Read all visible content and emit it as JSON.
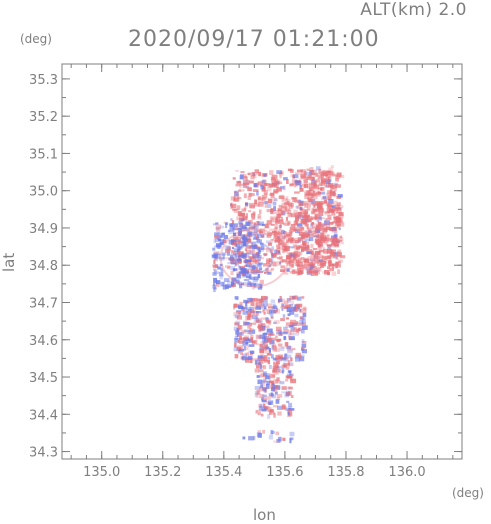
{
  "header": {
    "altitude_label": "ALT(km) 2.0",
    "timestamp": "2020/09/17 01:21:00"
  },
  "axes": {
    "x_label": "lon",
    "y_label": "lat",
    "x_unit": "(deg)",
    "y_unit": "(deg)",
    "x_ticks": [
      "135.0",
      "135.2",
      "135.4",
      "135.6",
      "135.8",
      "136.0"
    ],
    "y_ticks": [
      "35.3",
      "35.2",
      "35.1",
      "35.0",
      "34.9",
      "34.8",
      "34.7",
      "34.6",
      "34.5",
      "34.4",
      "34.3"
    ],
    "x_range": [
      134.87,
      136.18
    ],
    "y_range": [
      34.28,
      35.34
    ]
  },
  "colors": {
    "axis": "#7f7f7f",
    "approaching": "#6b78e6",
    "receding": "#e8727a",
    "background": "#ffffff"
  },
  "chart_data": {
    "type": "scatter",
    "title": "2020/09/17 01:21:00",
    "xlabel": "lon",
    "ylabel": "lat",
    "xlim": [
      134.87,
      136.18
    ],
    "ylim": [
      34.28,
      35.34
    ],
    "grid": false,
    "legend": "none"
  }
}
